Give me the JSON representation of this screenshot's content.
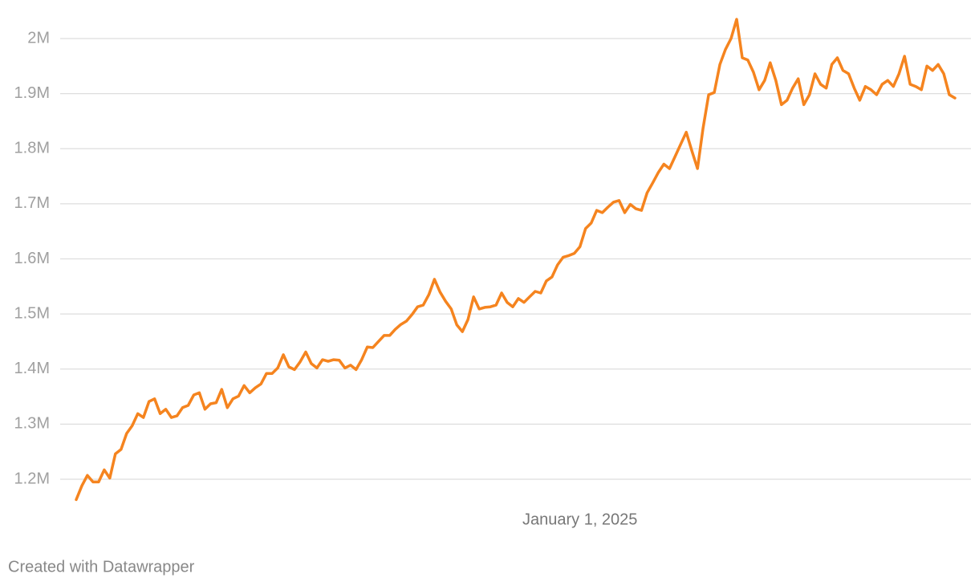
{
  "chart_data": {
    "type": "line",
    "categories": [
      null,
      null,
      null,
      null,
      null,
      null,
      null,
      null,
      null,
      null,
      null,
      null,
      null,
      null,
      null,
      null,
      null,
      null,
      null,
      null,
      null,
      null,
      null,
      null,
      null,
      null,
      null,
      null,
      null,
      null,
      null,
      null,
      null,
      null,
      null,
      null,
      null,
      null,
      null,
      null,
      null,
      null,
      null,
      null,
      null,
      null,
      null,
      null,
      null,
      null,
      null,
      null,
      null,
      null,
      null,
      null,
      null,
      null,
      null,
      null,
      null,
      null,
      null,
      null,
      null,
      null,
      null,
      null,
      null,
      null,
      null,
      null,
      null,
      null,
      null,
      null,
      null,
      null,
      null,
      null,
      null,
      null,
      null,
      null,
      null,
      null,
      null,
      null,
      null,
      null,
      "January 1, 2025",
      null,
      null,
      null,
      null,
      null,
      null,
      null,
      null,
      null,
      null,
      null,
      null,
      null,
      null,
      null,
      null,
      null,
      null,
      null,
      null,
      null,
      null,
      null,
      null,
      null,
      null,
      null,
      null,
      null,
      null,
      null,
      null,
      null,
      null,
      null,
      null,
      null,
      null,
      null,
      null,
      null,
      null,
      null,
      null,
      null,
      null,
      null,
      null,
      null,
      null,
      null,
      null,
      null,
      null,
      null,
      null,
      null,
      null,
      null,
      null,
      null,
      null,
      null,
      null,
      null,
      null,
      null
    ],
    "values": [
      1163000,
      1188000,
      1207000,
      1195000,
      1195000,
      1217000,
      1202000,
      1246000,
      1254000,
      1283000,
      1297000,
      1319000,
      1312000,
      1341000,
      1346000,
      1319000,
      1327000,
      1312000,
      1315000,
      1330000,
      1334000,
      1353000,
      1357000,
      1327000,
      1337000,
      1339000,
      1363000,
      1330000,
      1346000,
      1351000,
      1370000,
      1357000,
      1366000,
      1373000,
      1392000,
      1392000,
      1402000,
      1426000,
      1404000,
      1399000,
      1413000,
      1431000,
      1410000,
      1402000,
      1417000,
      1414000,
      1417000,
      1416000,
      1402000,
      1407000,
      1399000,
      1417000,
      1440000,
      1439000,
      1450000,
      1461000,
      1461000,
      1472000,
      1481000,
      1487000,
      1499000,
      1513000,
      1516000,
      1535000,
      1563000,
      1540000,
      1523000,
      1509000,
      1480000,
      1468000,
      1490000,
      1531000,
      1509000,
      1512000,
      1513000,
      1516000,
      1538000,
      1521000,
      1513000,
      1528000,
      1521000,
      1531000,
      1541000,
      1538000,
      1560000,
      1567000,
      1589000,
      1603000,
      1606000,
      1610000,
      1622000,
      1655000,
      1665000,
      1688000,
      1684000,
      1694000,
      1703000,
      1706000,
      1684000,
      1699000,
      1691000,
      1688000,
      1720000,
      1738000,
      1757000,
      1772000,
      1764000,
      1786000,
      1808000,
      1830000,
      1796000,
      1764000,
      1837000,
      1898000,
      1902000,
      1953000,
      1980000,
      2000000,
      2035000,
      1965000,
      1961000,
      1939000,
      1907000,
      1924000,
      1956000,
      1924000,
      1880000,
      1888000,
      1910000,
      1927000,
      1880000,
      1898000,
      1936000,
      1917000,
      1910000,
      1953000,
      1965000,
      1942000,
      1936000,
      1910000,
      1888000,
      1913000,
      1907000,
      1898000,
      1917000,
      1924000,
      1913000,
      1936000,
      1968000,
      1917000,
      1913000,
      1907000,
      1950000,
      1942000,
      1953000,
      1936000,
      1898000,
      1892000
    ],
    "color": "#f5841f",
    "ylim": [
      1150000,
      2050000
    ],
    "yticks": [
      {
        "value": 1200000,
        "label": "1.2M"
      },
      {
        "value": 1300000,
        "label": "1.3M"
      },
      {
        "value": 1400000,
        "label": "1.4M"
      },
      {
        "value": 1500000,
        "label": "1.5M"
      },
      {
        "value": 1600000,
        "label": "1.6M"
      },
      {
        "value": 1700000,
        "label": "1.7M"
      },
      {
        "value": 1800000,
        "label": "1.8M"
      },
      {
        "value": 1900000,
        "label": "1.9M"
      },
      {
        "value": 2000000,
        "label": "2M"
      }
    ],
    "grid": true,
    "footer": "Created with Datawrapper"
  }
}
